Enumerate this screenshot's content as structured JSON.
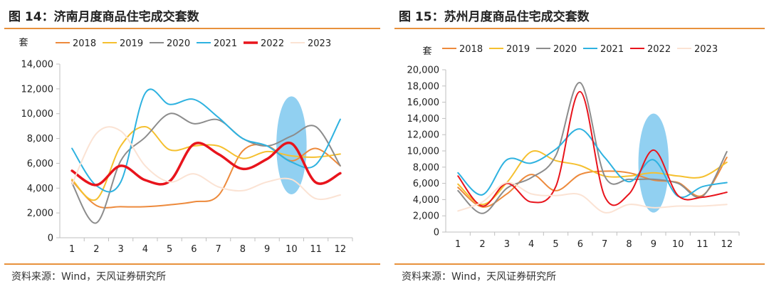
{
  "charts": [
    {
      "figure_title": "图 14：济南月度商品住宅成交套数",
      "source": "资料来源：Wind，天风证券研究所",
      "chart_data": {
        "type": "line",
        "ylabel": "套",
        "xlabel": "",
        "categories": [
          "1",
          "2",
          "3",
          "4",
          "5",
          "6",
          "7",
          "8",
          "9",
          "10",
          "11",
          "12"
        ],
        "ylim": [
          0,
          14000
        ],
        "yticks": [
          0,
          2000,
          4000,
          6000,
          8000,
          10000,
          12000,
          14000
        ],
        "ytick_labels": [
          "0",
          "2,000",
          "4,000",
          "6,000",
          "8,000",
          "10,000",
          "12,000",
          "14,000"
        ],
        "legend_position": "top",
        "grid": false,
        "highlight": {
          "shape": "ellipse",
          "color": "#7ec8ef",
          "x_category": "10",
          "y_range": [
            3500,
            11400
          ]
        },
        "series": [
          {
            "name": "2018",
            "color": "#ed8a3c",
            "width": 2,
            "values": [
              4600,
              2600,
              2500,
              2500,
              2650,
              2900,
              3400,
              7000,
              7400,
              6200,
              7200,
              5800
            ]
          },
          {
            "name": "2019",
            "color": "#f5c02f",
            "width": 2,
            "values": [
              4700,
              3100,
              7400,
              8950,
              7100,
              7400,
              7400,
              6400,
              6950,
              6600,
              6500,
              6750
            ]
          },
          {
            "name": "2020",
            "color": "#8c8c8c",
            "width": 2,
            "values": [
              4400,
              1200,
              6200,
              8100,
              10000,
              9200,
              9500,
              8000,
              7400,
              8200,
              8950,
              5800
            ]
          },
          {
            "name": "2021",
            "color": "#2eb2e0",
            "width": 2,
            "values": [
              7200,
              4200,
              4500,
              11650,
              10750,
              11150,
              9700,
              8000,
              7400,
              6100,
              5900,
              9550
            ]
          },
          {
            "name": "2022",
            "color": "#e8141c",
            "width": 3.5,
            "values": [
              5400,
              4250,
              5800,
              4650,
              4550,
              7550,
              6750,
              5550,
              6350,
              7600,
              4450,
              5200
            ]
          },
          {
            "name": "2023",
            "color": "#fbe3d4",
            "width": 2,
            "values": [
              4300,
              8400,
              8600,
              5800,
              4500,
              5150,
              4100,
              3800,
              4500,
              4700,
              3150,
              3450
            ]
          }
        ]
      }
    },
    {
      "figure_title": "图 15：苏州月度商品住宅成交套数",
      "source": "资料来源：Wind，天风证券研究所",
      "chart_data": {
        "type": "line",
        "ylabel": "套",
        "xlabel": "",
        "categories": [
          "1",
          "2",
          "3",
          "4",
          "5",
          "6",
          "7",
          "8",
          "9",
          "10",
          "11",
          "12"
        ],
        "ylim": [
          0,
          20000
        ],
        "yticks": [
          0,
          2000,
          4000,
          6000,
          8000,
          10000,
          12000,
          14000,
          16000,
          18000,
          20000
        ],
        "ytick_labels": [
          "0",
          "2,000",
          "4,000",
          "6,000",
          "8,000",
          "10,000",
          "12,000",
          "14,000",
          "16,000",
          "18,000",
          "20,000"
        ],
        "legend_position": "top",
        "grid": false,
        "highlight": {
          "shape": "ellipse",
          "color": "#7ec8ef",
          "x_category": "9",
          "y_range": [
            2400,
            14600
          ]
        },
        "series": [
          {
            "name": "2018",
            "color": "#ed8a3c",
            "width": 2,
            "values": [
              5500,
              3100,
              4700,
              7100,
              5100,
              7100,
              7500,
              7300,
              6400,
              6100,
              4500,
              9200
            ]
          },
          {
            "name": "2019",
            "color": "#f5c02f",
            "width": 2,
            "values": [
              5900,
              3400,
              6100,
              9900,
              8800,
              8200,
              6900,
              6900,
              7300,
              6900,
              6800,
              8600
            ]
          },
          {
            "name": "2020",
            "color": "#8c8c8c",
            "width": 2,
            "values": [
              5100,
              2300,
              5400,
              6700,
              9400,
              18400,
              6900,
              6500,
              6500,
              6000,
              4400,
              9900
            ]
          },
          {
            "name": "2021",
            "color": "#2eb2e0",
            "width": 2,
            "values": [
              7300,
              4600,
              8900,
              8500,
              10200,
              12700,
              9200,
              6200,
              8900,
              4400,
              5600,
              6100
            ]
          },
          {
            "name": "2022",
            "color": "#e8141c",
            "width": 2,
            "values": [
              6900,
              3200,
              6000,
              3700,
              5600,
              17300,
              4400,
              4700,
              10100,
              4500,
              4300,
              4900
            ]
          },
          {
            "name": "2023",
            "color": "#fbe3d4",
            "width": 2,
            "values": [
              2600,
              3700,
              6100,
              4700,
              4500,
              4600,
              2400,
              3400,
              3000,
              3200,
              3200,
              3400
            ]
          }
        ]
      }
    }
  ]
}
